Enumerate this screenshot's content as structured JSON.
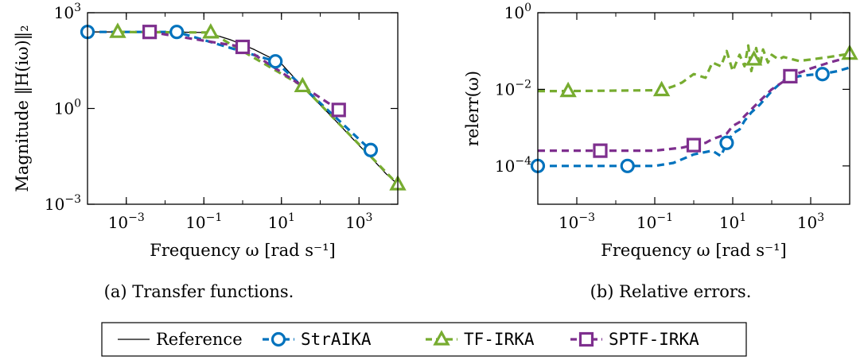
{
  "colors": {
    "reference": "#000000",
    "StrAIKA": "#0072BD",
    "TF-IRKA": "#77AC30",
    "SPTF-IRKA": "#7E2F8E"
  },
  "legend": {
    "items": [
      {
        "label": "Reference",
        "style": "solid",
        "marker": "none",
        "color": "#000000"
      },
      {
        "label": "StrAIKA",
        "style": "dashed",
        "marker": "circle",
        "color": "#0072BD"
      },
      {
        "label": "TF-IRKA",
        "style": "dashed",
        "marker": "triangle",
        "color": "#77AC30"
      },
      {
        "label": "SPTF-IRKA",
        "style": "dashed",
        "marker": "square",
        "color": "#7E2F8E"
      }
    ]
  },
  "chart_data": [
    {
      "type": "line",
      "caption": "(a) Transfer functions.",
      "xlabel": "Frequency ω [rad s⁻¹]",
      "ylabel": "Magnitude ‖H(iω)‖₂",
      "xscale": "log",
      "yscale": "log",
      "xlim": [
        0.0001,
        10000
      ],
      "ylim": [
        0.001,
        1000
      ],
      "xticks": [
        {
          "v": 0.001,
          "label": "10^-3"
        },
        {
          "v": 0.1,
          "label": "10^-1"
        },
        {
          "v": 10,
          "label": "10^1"
        },
        {
          "v": 1000,
          "label": "10^3"
        }
      ],
      "yticks": [
        {
          "v": 0.001,
          "label": "10^-3"
        },
        {
          "v": 1,
          "label": "10^0"
        },
        {
          "v": 1000,
          "label": "10^3"
        }
      ],
      "series": [
        {
          "name": "Reference",
          "x": [
            0.0001,
            0.001,
            0.01,
            0.1,
            0.2,
            0.5,
            1,
            2,
            5,
            10,
            20,
            50,
            100,
            200,
            500,
            1000,
            2000,
            5000,
            10000
          ],
          "y": [
            250,
            250,
            250,
            240,
            200,
            140,
            100,
            70,
            40,
            25,
            10,
            3,
            1.3,
            0.55,
            0.17,
            0.07,
            0.03,
            0.009,
            0.0042
          ]
        },
        {
          "name": "StrAIKA",
          "x": [
            0.0001,
            0.02,
            7,
            2000
          ],
          "y": [
            250,
            250,
            30,
            0.05
          ]
        },
        {
          "name": "TF-IRKA",
          "x": [
            0.0006,
            0.15,
            35,
            10000
          ],
          "y": [
            250,
            240,
            5,
            0.0042
          ]
        },
        {
          "name": "SPTF-IRKA",
          "x": [
            0.004,
            1,
            300
          ],
          "y": [
            250,
            85,
            0.9
          ]
        }
      ]
    },
    {
      "type": "line",
      "caption": "(b) Relative errors.",
      "xlabel": "Frequency ω [rad s⁻¹]",
      "ylabel": "relerr(ω)",
      "xscale": "log",
      "yscale": "log",
      "xlim": [
        0.0001,
        10000
      ],
      "ylim": [
        1e-05,
        1
      ],
      "xticks": [
        {
          "v": 0.001,
          "label": "10^-3"
        },
        {
          "v": 0.1,
          "label": "10^-1"
        },
        {
          "v": 10,
          "label": "10^1"
        },
        {
          "v": 1000,
          "label": "10^3"
        }
      ],
      "yticks": [
        {
          "v": 0.0001,
          "label": "10^-4"
        },
        {
          "v": 0.01,
          "label": "10^-2"
        },
        {
          "v": 1,
          "label": "10^0"
        }
      ],
      "series": [
        {
          "name": "StrAIKA",
          "markers_x": [
            0.0001,
            0.02,
            7,
            2000
          ],
          "x": [
            0.0001,
            0.02,
            0.1,
            0.3,
            1,
            3,
            5,
            7,
            10,
            15,
            20,
            30,
            50,
            100,
            200,
            500,
            1000,
            2000,
            5000,
            10000
          ],
          "y": [
            0.0001,
            0.0001,
            0.0001,
            0.00012,
            0.0002,
            0.00025,
            0.00018,
            0.0004,
            0.0007,
            0.0009,
            0.0015,
            0.0025,
            0.004,
            0.009,
            0.017,
            0.022,
            0.024,
            0.025,
            0.03,
            0.037
          ]
        },
        {
          "name": "TF-IRKA",
          "markers_x": [
            0.0006,
            0.15,
            35,
            10000
          ],
          "x": [
            0.0001,
            0.0006,
            0.15,
            0.3,
            0.5,
            1,
            2,
            3,
            5,
            7,
            10,
            15,
            20,
            25,
            30,
            35,
            40,
            50,
            60,
            80,
            100,
            150,
            200,
            500,
            1000,
            3000,
            10000
          ],
          "y": [
            0.009,
            0.009,
            0.0095,
            0.012,
            0.015,
            0.025,
            0.02,
            0.05,
            0.04,
            0.1,
            0.03,
            0.08,
            0.04,
            0.14,
            0.03,
            0.06,
            0.12,
            0.04,
            0.11,
            0.05,
            0.08,
            0.06,
            0.07,
            0.055,
            0.06,
            0.07,
            0.085
          ]
        },
        {
          "name": "SPTF-IRKA",
          "markers_x": [
            0.004,
            1,
            300
          ],
          "x": [
            0.0001,
            0.004,
            0.1,
            0.5,
            1,
            2,
            3,
            5,
            7,
            10,
            15,
            20,
            30,
            50,
            100,
            200,
            300,
            1000,
            3000,
            10000
          ],
          "y": [
            0.00025,
            0.00025,
            0.00025,
            0.0003,
            0.00035,
            0.0004,
            0.0005,
            0.0006,
            0.0007,
            0.0011,
            0.0014,
            0.002,
            0.003,
            0.005,
            0.01,
            0.016,
            0.022,
            0.035,
            0.05,
            0.07
          ]
        }
      ]
    }
  ]
}
